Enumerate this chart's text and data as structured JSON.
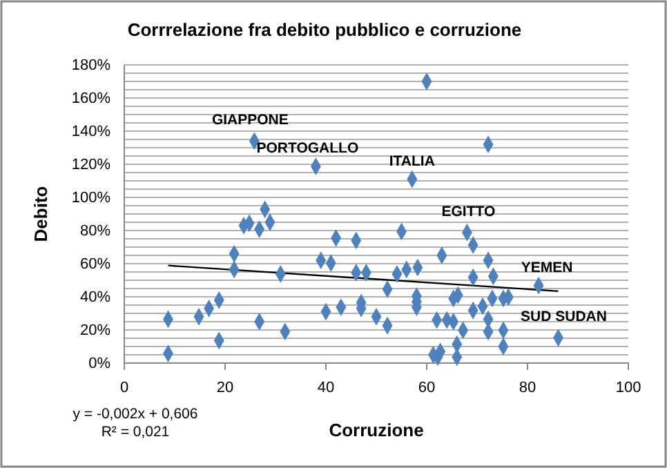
{
  "chart_data": {
    "type": "scatter",
    "title": "Corrrelazione fra debito pubblico e corruzione",
    "xlabel": "Corruzione",
    "ylabel": "Debito",
    "xlim": [
      0,
      100
    ],
    "xticks": [
      0,
      20,
      40,
      60,
      80,
      100
    ],
    "ylim": [
      0,
      180
    ],
    "yticks": [
      {
        "value": 0,
        "label": "0%"
      },
      {
        "value": 5,
        "label": null
      },
      {
        "value": 10,
        "label": null
      },
      {
        "value": 15,
        "label": null
      },
      {
        "value": 20,
        "label": "20%"
      },
      {
        "value": 25,
        "label": null
      },
      {
        "value": 30,
        "label": null
      },
      {
        "value": 35,
        "label": null
      },
      {
        "value": 40,
        "label": "40%"
      },
      {
        "value": 45,
        "label": null
      },
      {
        "value": 50,
        "label": null
      },
      {
        "value": 55,
        "label": null
      },
      {
        "value": 60,
        "label": "60%"
      },
      {
        "value": 65,
        "label": null
      },
      {
        "value": 70,
        "label": null
      },
      {
        "value": 75,
        "label": null
      },
      {
        "value": 80,
        "label": "80%"
      },
      {
        "value": 85,
        "label": null
      },
      {
        "value": 90,
        "label": null
      },
      {
        "value": 95,
        "label": null
      },
      {
        "value": 100,
        "label": "100%"
      },
      {
        "value": 105,
        "label": null
      },
      {
        "value": 110,
        "label": null
      },
      {
        "value": 115,
        "label": null
      },
      {
        "value": 120,
        "label": "120%"
      },
      {
        "value": 125,
        "label": null
      },
      {
        "value": 130,
        "label": null
      },
      {
        "value": 135,
        "label": null
      },
      {
        "value": 140,
        "label": "140%"
      },
      {
        "value": 145,
        "label": null
      },
      {
        "value": 150,
        "label": null
      },
      {
        "value": 155,
        "label": null
      },
      {
        "value": 160,
        "label": "160%"
      },
      {
        "value": 165,
        "label": null
      },
      {
        "value": 170,
        "label": null
      },
      {
        "value": 175,
        "label": null
      },
      {
        "value": 180,
        "label": "180%"
      }
    ],
    "grid": "y",
    "series": [
      {
        "type": "scatter",
        "marker": "diamond",
        "color": "#4f81bd",
        "x": [
          8.7,
          8.7,
          14.8,
          16.8,
          18.8,
          18.8,
          21.8,
          21.8,
          23.7,
          24.8,
          25.8,
          26.8,
          26.8,
          27.9,
          28.9,
          31,
          31.9,
          38,
          39,
          40,
          41,
          42,
          43,
          46,
          46,
          47,
          47,
          48,
          50,
          52.2,
          52.2,
          55,
          54.1,
          56,
          58.2,
          58,
          58,
          58,
          57.1,
          60,
          63,
          62,
          64,
          65.3,
          65.3,
          66.2,
          67.2,
          66,
          66,
          61.3,
          62.7,
          62.2,
          68,
          69.2,
          69.2,
          69.2,
          71.1,
          72.2,
          72.2,
          73.2,
          72.2,
          72.2,
          73,
          75.2,
          76.2,
          75.2,
          75.2,
          82.2,
          86.1
        ],
        "values": [
          26.5,
          5.8,
          28,
          33,
          38,
          13.6,
          66,
          56.5,
          83,
          84.4,
          134,
          80.8,
          25,
          92.8,
          85,
          53.8,
          19,
          118.7,
          62,
          31,
          60.4,
          75.5,
          33.7,
          74,
          54.6,
          36.5,
          33,
          54.6,
          28,
          22.6,
          44.6,
          79.4,
          53.8,
          56.5,
          57.7,
          40.4,
          37,
          33.7,
          111,
          170,
          65,
          26,
          26,
          25,
          39,
          41,
          19.8,
          11.4,
          3.6,
          5,
          7,
          3.6,
          78.8,
          71.3,
          51.8,
          31.8,
          34.3,
          62,
          132,
          52.4,
          26.5,
          19,
          39,
          39,
          39.8,
          19.8,
          10,
          46.8,
          15.3
        ]
      },
      {
        "type": "line",
        "marker": "none",
        "color": "#000000",
        "x": [
          8.7,
          86.1
        ],
        "values": [
          58.9,
          43.4
        ]
      }
    ],
    "annotations": [
      {
        "text": "GIAPPONE",
        "x": 25.8,
        "y": 134
      },
      {
        "text": "PORTOGALLO",
        "x": 38,
        "y": 118.7
      },
      {
        "text": "ITALIA",
        "x": 57.1,
        "y": 111
      },
      {
        "text": "EGITTO",
        "x": 68,
        "y": 78.8
      },
      {
        "text": "YEMEN",
        "x": 82.2,
        "y": 46.8
      },
      {
        "text": "SUD SUDAN",
        "x": 86.1,
        "y": 15.3
      },
      "y = -0,002x + 0,606",
      "R² = 0,021"
    ]
  }
}
